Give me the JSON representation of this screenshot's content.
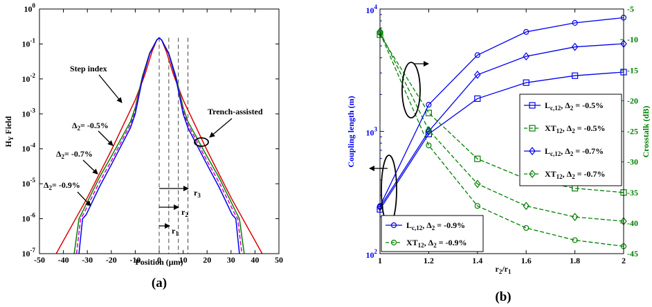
{
  "chart_data": [
    {
      "id": "a",
      "type": "line",
      "caption": "(a)",
      "xlabel": "Position (μm)",
      "ylabel_main": "H",
      "ylabel_sub": "Y",
      "ylabel_rest": " Field",
      "scale_y": "log",
      "xlim": [
        -50,
        50
      ],
      "ylim": [
        1e-07,
        1
      ],
      "x_ticks": [
        -50,
        -40,
        -30,
        -20,
        -10,
        0,
        10,
        20,
        30,
        40,
        50
      ],
      "y_ticks": [
        {
          "value": 1e-07,
          "base": "10",
          "exp": "-7"
        },
        {
          "value": 1e-06,
          "base": "10",
          "exp": "-6"
        },
        {
          "value": 1e-05,
          "base": "10",
          "exp": "-5"
        },
        {
          "value": 0.0001,
          "base": "10",
          "exp": "-4"
        },
        {
          "value": 0.001,
          "base": "10",
          "exp": "-3"
        },
        {
          "value": 0.01,
          "base": "10",
          "exp": "-2"
        },
        {
          "value": 0.1,
          "base": "10",
          "exp": "-1"
        },
        {
          "value": 1,
          "base": "10",
          "exp": "0"
        }
      ],
      "series": [
        {
          "color": "#e00000",
          "style": "solid",
          "x": [
            -43,
            -30,
            -20,
            -10,
            -6,
            -3,
            -1,
            0,
            1,
            3,
            6,
            10,
            20,
            30,
            43
          ],
          "y": [
            1e-07,
            4e-06,
            9e-05,
            0.0025,
            0.013,
            0.06,
            0.13,
            0.15,
            0.13,
            0.06,
            0.013,
            0.0025,
            9e-05,
            4e-06,
            1e-07
          ]
        },
        {
          "color": "#008000",
          "style": "solid",
          "x": [
            -35.5,
            -33.5,
            -32.2,
            -25,
            -20,
            -12,
            -10,
            -7,
            -4,
            -1,
            0,
            1,
            4,
            7,
            10,
            12,
            20,
            25,
            32.2,
            33.5,
            35.5
          ],
          "y": [
            1e-07,
            1e-06,
            1.5e-06,
            1.5e-05,
            6e-05,
            0.0006,
            0.0015,
            0.012,
            0.055,
            0.13,
            0.15,
            0.13,
            0.055,
            0.012,
            0.0015,
            0.0006,
            6e-05,
            1.5e-05,
            1.5e-06,
            1e-06,
            1e-07
          ]
        },
        {
          "color": "#cc00cc",
          "style": "dashed",
          "x": [
            -34.5,
            -32.8,
            -31.5,
            -25,
            -20,
            -12,
            -10,
            -7,
            -4,
            -1,
            0,
            1,
            4,
            7,
            10,
            12,
            20,
            25,
            31.5,
            32.8,
            34.5
          ],
          "y": [
            1e-07,
            1e-06,
            1.4e-06,
            1.1e-05,
            4.5e-05,
            0.0005,
            0.0012,
            0.011,
            0.053,
            0.13,
            0.15,
            0.13,
            0.053,
            0.011,
            0.0012,
            0.0005,
            4.5e-05,
            1.1e-05,
            1.4e-06,
            1e-06,
            1e-07
          ]
        },
        {
          "color": "#0000ee",
          "style": "solid",
          "x": [
            -33.5,
            -32,
            -30.5,
            -25,
            -20,
            -12,
            -10,
            -7,
            -4,
            -1,
            0,
            1,
            4,
            7,
            10,
            12,
            20,
            25,
            30.5,
            32,
            33.5
          ],
          "y": [
            1e-07,
            1e-06,
            1.3e-06,
            8e-06,
            3.5e-05,
            0.0004,
            0.001,
            0.01,
            0.052,
            0.13,
            0.15,
            0.13,
            0.052,
            0.01,
            0.001,
            0.0004,
            3.5e-05,
            8e-06,
            1.3e-06,
            1e-06,
            1e-07
          ]
        }
      ],
      "vlines": [
        0,
        4,
        8,
        12
      ],
      "annotations": {
        "step_index": "Step index",
        "trench": "Trench-assisted",
        "delta_prefix": "Δ",
        "delta_sub": "2",
        "d1": "= -0.5%",
        "d2": "= -0.7%",
        "d3": "= -0.9%",
        "r_main": "r",
        "r1_sub": "1",
        "r2_sub": "2",
        "r3_sub": "3"
      }
    },
    {
      "id": "b",
      "type": "line",
      "caption": "(b)",
      "xlabel_main": "r",
      "xlabel_sub1": "2",
      "xlabel_slash": "/r",
      "xlabel_sub2": "1",
      "ylabel_left": "Coupling length (m)",
      "ylabel_right": "Crosstalk (dB)",
      "xlim": [
        1,
        2
      ],
      "ylim_left": [
        100,
        10000
      ],
      "scale_left": "log",
      "ylim_right": [
        -45,
        -5
      ],
      "x_ticks": [
        "1",
        "1.2",
        "1.4",
        "1.6",
        "1.8",
        "2"
      ],
      "x_tick_values": [
        1,
        1.2,
        1.4,
        1.6,
        1.8,
        2
      ],
      "y_left_ticks": [
        {
          "value": 100,
          "base": "10",
          "exp": "2"
        },
        {
          "value": 1000,
          "base": "10",
          "exp": "3"
        },
        {
          "value": 10000,
          "base": "10",
          "exp": "4"
        }
      ],
      "y_right_ticks": [
        "-5",
        "-10",
        "-15",
        "-20",
        "-25",
        "-30",
        "-35",
        "-40",
        "-45"
      ],
      "y_right_values": [
        -5,
        -10,
        -15,
        -20,
        -25,
        -30,
        -35,
        -40,
        -45
      ],
      "x": [
        1,
        1.2,
        1.4,
        1.6,
        1.8,
        2
      ],
      "series": [
        {
          "axis": "left",
          "marker": "square",
          "style": "solid",
          "color": "#0000ee",
          "values": [
            230,
            950,
            1850,
            2500,
            2850,
            3050
          ]
        },
        {
          "axis": "right",
          "marker": "square",
          "style": "dashed",
          "color": "#008000",
          "values": [
            -9.2,
            -22,
            -29.5,
            -32.8,
            -34.3,
            -35
          ]
        },
        {
          "axis": "left",
          "marker": "diamond",
          "style": "solid",
          "color": "#0000ee",
          "values": [
            240,
            1000,
            2900,
            4100,
            4900,
            5200
          ]
        },
        {
          "axis": "right",
          "marker": "diamond",
          "style": "dashed",
          "color": "#008000",
          "values": [
            -8.7,
            -24.8,
            -33.6,
            -37.2,
            -39,
            -39.7
          ]
        },
        {
          "axis": "left",
          "marker": "circle",
          "style": "solid",
          "color": "#0000ee",
          "values": [
            245,
            1650,
            4200,
            6500,
            7700,
            8500
          ]
        },
        {
          "axis": "right",
          "marker": "circle",
          "style": "dashed",
          "color": "#008000",
          "values": [
            -8.9,
            -27.3,
            -37.2,
            -40.8,
            -42.8,
            -43.8
          ]
        }
      ],
      "legend_right": [
        {
          "main": "L",
          "sub": "c,12",
          "tail": ", Δ",
          "sub2": "2",
          "end": " = -0.5%",
          "color": "#0000ee",
          "marker": "square",
          "style": "solid"
        },
        {
          "main": "XT",
          "sub": "12",
          "tail": ", Δ",
          "sub2": "2",
          "end": " = -0.5%",
          "color": "#008000",
          "marker": "square",
          "style": "dashed"
        },
        {
          "main": "L",
          "sub": "c,12",
          "tail": ", Δ",
          "sub2": "2",
          "end": " = -0.7%",
          "color": "#0000ee",
          "marker": "diamond",
          "style": "solid"
        },
        {
          "main": "XT",
          "sub": "12",
          "tail": ", Δ",
          "sub2": "2",
          "end": " = -0.7%",
          "color": "#008000",
          "marker": "diamond",
          "style": "dashed"
        }
      ],
      "legend_left": [
        {
          "main": "L",
          "sub": "c,12",
          "tail": ", Δ",
          "sub2": "2",
          "end": " = -0.9%",
          "color": "#0000ee",
          "marker": "circle",
          "style": "solid"
        },
        {
          "main": "XT",
          "sub": "12",
          "tail": ", Δ",
          "sub2": "2",
          "end": " = -0.9%",
          "color": "#008000",
          "marker": "circle",
          "style": "dashed"
        }
      ]
    }
  ]
}
